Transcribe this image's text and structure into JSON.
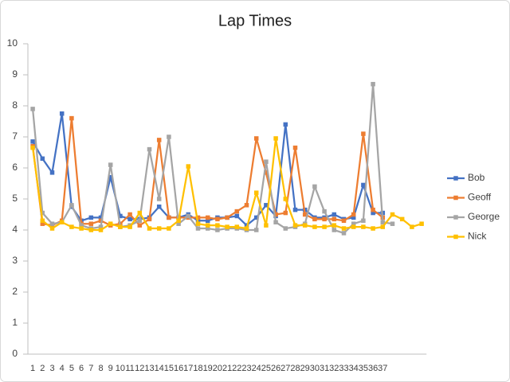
{
  "chart_data": {
    "type": "line",
    "title": "Lap Times",
    "categories": [
      1,
      2,
      3,
      4,
      5,
      6,
      7,
      8,
      9,
      10,
      11,
      12,
      13,
      14,
      15,
      16,
      17,
      18,
      19,
      20,
      21,
      22,
      23,
      24,
      25,
      26,
      27,
      28,
      29,
      30,
      31,
      32,
      33,
      34,
      35,
      36,
      37,
      null,
      null,
      null,
      null
    ],
    "series": [
      {
        "name": "Bob",
        "color": "#4472c4",
        "values": [
          6.85,
          6.3,
          5.85,
          7.75,
          4.75,
          4.3,
          4.4,
          4.4,
          5.7,
          4.45,
          4.35,
          4.35,
          4.4,
          4.75,
          4.4,
          4.4,
          4.5,
          4.3,
          4.3,
          4.4,
          4.4,
          4.45,
          4.15,
          4.4,
          4.8,
          4.45,
          7.4,
          4.65,
          4.65,
          4.4,
          4.4,
          4.5,
          4.35,
          4.4,
          5.45,
          4.55,
          4.55,
          null,
          null,
          null,
          null
        ]
      },
      {
        "name": "Geoff",
        "color": "#ed7d31",
        "values": [
          6.7,
          4.2,
          4.15,
          4.3,
          7.6,
          4.2,
          4.2,
          4.3,
          4.15,
          4.2,
          4.5,
          4.15,
          4.35,
          6.9,
          4.4,
          4.4,
          4.4,
          4.4,
          4.4,
          4.35,
          4.4,
          4.6,
          4.8,
          6.95,
          5.85,
          4.5,
          4.55,
          6.65,
          4.5,
          4.35,
          4.35,
          4.35,
          4.3,
          4.5,
          7.1,
          4.65,
          4.4,
          null,
          null,
          null,
          null
        ]
      },
      {
        "name": "George",
        "color": "#a5a5a5",
        "values": [
          7.9,
          4.55,
          4.2,
          4.25,
          4.8,
          4.15,
          4.05,
          4.1,
          6.1,
          4.1,
          4.15,
          4.3,
          6.6,
          5.0,
          7.0,
          4.2,
          4.45,
          4.05,
          4.05,
          4.0,
          4.05,
          4.05,
          4.0,
          4.0,
          6.2,
          4.25,
          4.05,
          4.1,
          4.2,
          5.4,
          4.6,
          4.0,
          3.9,
          4.2,
          4.3,
          8.7,
          4.25,
          4.2,
          null,
          null,
          null
        ]
      },
      {
        "name": "Nick",
        "color": "#ffc000",
        "values": [
          6.65,
          4.3,
          4.05,
          4.25,
          4.1,
          4.05,
          4.0,
          4.0,
          4.2,
          4.1,
          4.1,
          4.55,
          4.05,
          4.05,
          4.05,
          4.3,
          6.05,
          4.2,
          4.15,
          4.15,
          4.1,
          4.1,
          4.05,
          5.2,
          4.15,
          6.95,
          5.0,
          4.15,
          4.15,
          4.1,
          4.1,
          4.15,
          4.05,
          4.1,
          4.1,
          4.05,
          4.1,
          4.5,
          4.35,
          4.1,
          4.2
        ]
      }
    ],
    "ylim": [
      0,
      10
    ],
    "yticks": [
      0,
      1,
      2,
      3,
      4,
      5,
      6,
      7,
      8,
      9,
      10
    ],
    "legend": "right"
  }
}
